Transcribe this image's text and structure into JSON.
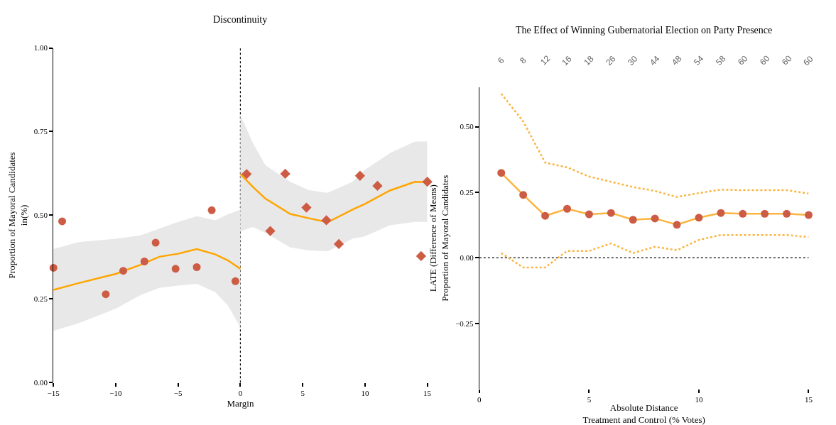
{
  "chart_data": [
    {
      "type": "scatter",
      "title": "Discontinuity",
      "xlabel": "Margin",
      "ylabel": "Proportion of Mayoral Candidates\nin(%)",
      "xlim": [
        -15,
        15
      ],
      "ylim": [
        0,
        1
      ],
      "xticks": [
        {
          "value": -15,
          "label": "−15"
        },
        {
          "value": -10,
          "label": "−10"
        },
        {
          "value": -5,
          "label": "−5"
        },
        0,
        5,
        10,
        15
      ],
      "yticks": [
        {
          "value": 0,
          "label": "0.00"
        },
        {
          "value": 0.25,
          "label": "0.25"
        },
        {
          "value": 0.5,
          "label": "0.50"
        },
        {
          "value": 0.75,
          "label": "0.75"
        },
        {
          "value": 1,
          "label": "1.00"
        }
      ],
      "ref_lines": [
        {
          "axis": "x",
          "value": 0,
          "color": "#000000",
          "line_style": "dotted"
        }
      ],
      "series": [
        {
          "type": "line",
          "color": "#ffa500",
          "marker": "none",
          "x": [
            -15,
            -13,
            -10,
            -8,
            -6.5,
            -5,
            -3.5,
            -2,
            -1,
            0
          ],
          "values": [
            0.277,
            0.297,
            0.325,
            0.352,
            0.376,
            0.385,
            0.399,
            0.383,
            0.365,
            0.34
          ],
          "lower": [
            0.155,
            0.177,
            0.221,
            0.262,
            0.283,
            0.29,
            0.295,
            0.27,
            0.23,
            0.166
          ],
          "upper": [
            0.399,
            0.42,
            0.43,
            0.44,
            0.46,
            0.48,
            0.497,
            0.485,
            0.503,
            0.517
          ]
        },
        {
          "type": "line",
          "color": "#ffa500",
          "marker": "none",
          "x": [
            0,
            1,
            2,
            4,
            5.5,
            7,
            9,
            10,
            12,
            14,
            15
          ],
          "values": [
            0.623,
            0.585,
            0.55,
            0.504,
            0.491,
            0.479,
            0.517,
            0.534,
            0.574,
            0.6,
            0.599
          ],
          "lower": [
            0.452,
            0.465,
            0.448,
            0.404,
            0.395,
            0.392,
            0.43,
            0.437,
            0.47,
            0.48,
            0.48
          ],
          "upper": [
            0.8,
            0.716,
            0.65,
            0.6,
            0.575,
            0.567,
            0.6,
            0.636,
            0.686,
            0.72,
            0.72
          ]
        },
        {
          "color": "#cd5c45",
          "marker": "circle",
          "x": [
            -15,
            -14.3,
            -10.8,
            -9.4,
            -7.7,
            -6.8,
            -5.2,
            -3.5,
            -2.3,
            -0.4
          ],
          "values": [
            0.343,
            0.482,
            0.264,
            0.334,
            0.362,
            0.418,
            0.34,
            0.345,
            0.515,
            0.303
          ]
        },
        {
          "color": "#cd5c45",
          "marker": "diamond",
          "x": [
            0.5,
            2.4,
            3.6,
            5.3,
            6.9,
            7.9,
            9.6,
            11.0,
            14.5,
            15
          ],
          "values": [
            0.623,
            0.453,
            0.624,
            0.523,
            0.485,
            0.414,
            0.618,
            0.588,
            0.378,
            0.6
          ]
        }
      ]
    },
    {
      "type": "line",
      "title": "The Effect of Winning Gubernatorial Election on Party Presence",
      "xlabel": "Absolute Distance\nTreatment and Control (% Votes)",
      "ylabel": "LATE (Difference of Means)\nProportion of Mayoral Candidates",
      "xlim": [
        0,
        15
      ],
      "ylim": [
        -0.5,
        0.65
      ],
      "xticks": [
        0,
        5,
        10,
        15
      ],
      "yticks": [
        {
          "value": -0.25,
          "label": "−0.25"
        },
        {
          "value": 0,
          "label": "0.00"
        },
        {
          "value": 0.25,
          "label": "0.25"
        },
        {
          "value": 0.5,
          "label": "0.50"
        }
      ],
      "annotations": [
        "6",
        "8",
        "12",
        "16",
        "18",
        "26",
        "30",
        "44",
        "48",
        "54",
        "58",
        "60",
        "60",
        "60",
        "60"
      ],
      "ref_lines": [
        {
          "axis": "y",
          "value": 0,
          "color": "#000000",
          "line_style": "dotted"
        }
      ],
      "x": [
        1,
        2,
        3,
        4,
        5,
        6,
        7,
        8,
        9,
        10,
        11,
        12,
        13,
        14,
        15
      ],
      "series": [
        {
          "color": "#fbb540",
          "marker": "none",
          "line_style": "dotted",
          "values": [
            0.626,
            0.52,
            0.363,
            0.345,
            0.31,
            0.29,
            0.27,
            0.255,
            0.232,
            0.247,
            0.26,
            0.258,
            0.258,
            0.258,
            0.245
          ]
        },
        {
          "color": "#fbb540",
          "marker": "none",
          "line_style": "dotted",
          "values": [
            0.018,
            -0.037,
            -0.037,
            0.026,
            0.026,
            0.055,
            0.018,
            0.042,
            0.029,
            0.068,
            0.087,
            0.087,
            0.087,
            0.087,
            0.079
          ]
        },
        {
          "color": "#fbb540",
          "marker": "none",
          "line_style": "solid",
          "values": [
            0.324,
            0.24,
            0.16,
            0.187,
            0.166,
            0.171,
            0.145,
            0.15,
            0.126,
            0.153,
            0.171,
            0.168,
            0.168,
            0.168,
            0.163
          ]
        },
        {
          "type": "scatter",
          "color": "#cd5c45",
          "marker": "circle",
          "values": [
            0.324,
            0.24,
            0.16,
            0.187,
            0.166,
            0.171,
            0.145,
            0.15,
            0.126,
            0.153,
            0.171,
            0.168,
            0.168,
            0.168,
            0.163
          ]
        }
      ]
    }
  ]
}
